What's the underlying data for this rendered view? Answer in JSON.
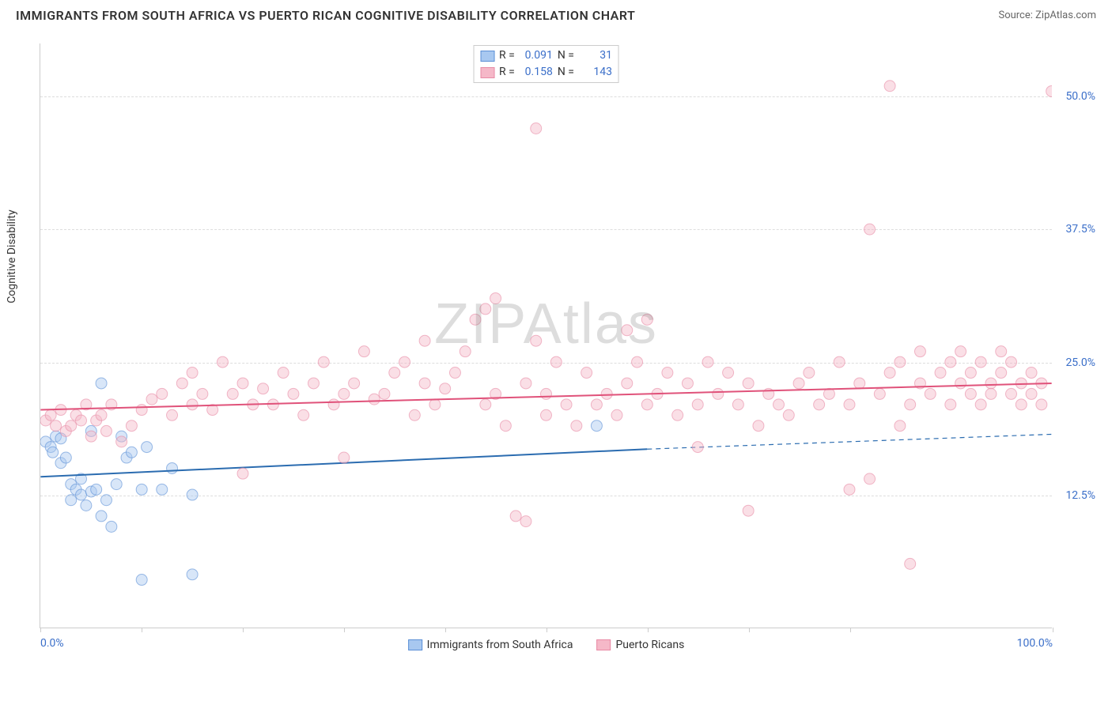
{
  "title": "IMMIGRANTS FROM SOUTH AFRICA VS PUERTO RICAN COGNITIVE DISABILITY CORRELATION CHART",
  "source_label": "Source: ",
  "source_name": "ZipAtlas.com",
  "watermark": "ZIPAtlas",
  "chart": {
    "type": "scatter",
    "y_axis_label": "Cognitive Disability",
    "xlim": [
      0,
      100
    ],
    "ylim": [
      0,
      55
    ],
    "y_ticks": [
      12.5,
      25.0,
      37.5,
      50.0
    ],
    "y_tick_labels": [
      "12.5%",
      "25.0%",
      "37.5%",
      "50.0%"
    ],
    "x_ticks": [
      0,
      10,
      20,
      30,
      40,
      50,
      60,
      70,
      80,
      100
    ],
    "x_tick_labels_shown": {
      "0": "0.0%",
      "100": "100.0%"
    },
    "background_color": "#ffffff",
    "grid_color": "#dddddd",
    "axis_color": "#cccccc",
    "point_radius": 7,
    "point_opacity": 0.45,
    "line_width": 2,
    "series": [
      {
        "id": "south_africa",
        "label": "Immigrants from South Africa",
        "color_fill": "#a8c8f0",
        "color_stroke": "#5b8fd6",
        "line_color": "#2b6cb0",
        "R": "0.091",
        "N": "31",
        "trend": {
          "x1": 0,
          "y1": 14.2,
          "x2": 60,
          "y2": 16.8,
          "dash_x2": 100,
          "dash_y2": 18.2
        },
        "points": [
          [
            0.5,
            17.5
          ],
          [
            1,
            17
          ],
          [
            1.2,
            16.5
          ],
          [
            1.5,
            18
          ],
          [
            2,
            17.8
          ],
          [
            2,
            15.5
          ],
          [
            2.5,
            16
          ],
          [
            3,
            13.5
          ],
          [
            3,
            12
          ],
          [
            3.5,
            13
          ],
          [
            4,
            12.5
          ],
          [
            4,
            14
          ],
          [
            4.5,
            11.5
          ],
          [
            5,
            12.8
          ],
          [
            5,
            18.5
          ],
          [
            5.5,
            13
          ],
          [
            6,
            10.5
          ],
          [
            6.5,
            12
          ],
          [
            7,
            9.5
          ],
          [
            7.5,
            13.5
          ],
          [
            8,
            18
          ],
          [
            8.5,
            16
          ],
          [
            9,
            16.5
          ],
          [
            10,
            13
          ],
          [
            10.5,
            17
          ],
          [
            12,
            13
          ],
          [
            13,
            15
          ],
          [
            15,
            12.5
          ],
          [
            6,
            23
          ],
          [
            10,
            4.5
          ],
          [
            15,
            5
          ],
          [
            55,
            19
          ]
        ]
      },
      {
        "id": "puerto_ricans",
        "label": "Puerto Ricans",
        "color_fill": "#f5b8c8",
        "color_stroke": "#e88aa5",
        "line_color": "#e0527a",
        "R": "0.158",
        "N": "143",
        "trend": {
          "x1": 0,
          "y1": 20.5,
          "x2": 100,
          "y2": 23.0
        },
        "points": [
          [
            0.5,
            19.5
          ],
          [
            1,
            20
          ],
          [
            1.5,
            19
          ],
          [
            2,
            20.5
          ],
          [
            2.5,
            18.5
          ],
          [
            3,
            19
          ],
          [
            3.5,
            20
          ],
          [
            4,
            19.5
          ],
          [
            4.5,
            21
          ],
          [
            5,
            18
          ],
          [
            5.5,
            19.5
          ],
          [
            6,
            20
          ],
          [
            6.5,
            18.5
          ],
          [
            7,
            21
          ],
          [
            8,
            17.5
          ],
          [
            9,
            19
          ],
          [
            10,
            20.5
          ],
          [
            11,
            21.5
          ],
          [
            12,
            22
          ],
          [
            13,
            20
          ],
          [
            14,
            23
          ],
          [
            15,
            21
          ],
          [
            15,
            24
          ],
          [
            16,
            22
          ],
          [
            17,
            20.5
          ],
          [
            18,
            25
          ],
          [
            19,
            22
          ],
          [
            20,
            23
          ],
          [
            20,
            14.5
          ],
          [
            21,
            21
          ],
          [
            22,
            22.5
          ],
          [
            23,
            21
          ],
          [
            24,
            24
          ],
          [
            25,
            22
          ],
          [
            26,
            20
          ],
          [
            27,
            23
          ],
          [
            28,
            25
          ],
          [
            29,
            21
          ],
          [
            30,
            22
          ],
          [
            30,
            16
          ],
          [
            31,
            23
          ],
          [
            32,
            26
          ],
          [
            33,
            21.5
          ],
          [
            34,
            22
          ],
          [
            35,
            24
          ],
          [
            36,
            25
          ],
          [
            37,
            20
          ],
          [
            38,
            23
          ],
          [
            38,
            27
          ],
          [
            39,
            21
          ],
          [
            40,
            22.5
          ],
          [
            41,
            24
          ],
          [
            42,
            26
          ],
          [
            43,
            29
          ],
          [
            44,
            21
          ],
          [
            44,
            30
          ],
          [
            45,
            22
          ],
          [
            45,
            31
          ],
          [
            46,
            19
          ],
          [
            47,
            10.5
          ],
          [
            48,
            23
          ],
          [
            48,
            10
          ],
          [
            49,
            27
          ],
          [
            49,
            47
          ],
          [
            50,
            22
          ],
          [
            50,
            20
          ],
          [
            51,
            25
          ],
          [
            52,
            21
          ],
          [
            53,
            19
          ],
          [
            54,
            24
          ],
          [
            55,
            21
          ],
          [
            56,
            22
          ],
          [
            57,
            20
          ],
          [
            58,
            23
          ],
          [
            58,
            28
          ],
          [
            59,
            25
          ],
          [
            60,
            21
          ],
          [
            60,
            29
          ],
          [
            61,
            22
          ],
          [
            62,
            24
          ],
          [
            63,
            20
          ],
          [
            64,
            23
          ],
          [
            65,
            21
          ],
          [
            65,
            17
          ],
          [
            66,
            25
          ],
          [
            67,
            22
          ],
          [
            68,
            24
          ],
          [
            69,
            21
          ],
          [
            70,
            23
          ],
          [
            70,
            11
          ],
          [
            71,
            19
          ],
          [
            72,
            22
          ],
          [
            73,
            21
          ],
          [
            74,
            20
          ],
          [
            75,
            23
          ],
          [
            76,
            24
          ],
          [
            77,
            21
          ],
          [
            78,
            22
          ],
          [
            79,
            25
          ],
          [
            80,
            21
          ],
          [
            80,
            13
          ],
          [
            81,
            23
          ],
          [
            82,
            14
          ],
          [
            82,
            37.5
          ],
          [
            83,
            22
          ],
          [
            84,
            24
          ],
          [
            85,
            19
          ],
          [
            85,
            25
          ],
          [
            86,
            21
          ],
          [
            86,
            6
          ],
          [
            87,
            23
          ],
          [
            87,
            26
          ],
          [
            88,
            22
          ],
          [
            89,
            24
          ],
          [
            90,
            25
          ],
          [
            90,
            21
          ],
          [
            91,
            23
          ],
          [
            91,
            26
          ],
          [
            92,
            22
          ],
          [
            92,
            24
          ],
          [
            93,
            25
          ],
          [
            93,
            21
          ],
          [
            94,
            23
          ],
          [
            94,
            22
          ],
          [
            95,
            24
          ],
          [
            95,
            26
          ],
          [
            96,
            22
          ],
          [
            96,
            25
          ],
          [
            97,
            21
          ],
          [
            97,
            23
          ],
          [
            98,
            24
          ],
          [
            98,
            22
          ],
          [
            99,
            23
          ],
          [
            99,
            21
          ],
          [
            100,
            50.5
          ],
          [
            84,
            51
          ]
        ]
      }
    ]
  },
  "legend_top": {
    "r_label": "R =",
    "n_label": "N ="
  },
  "colors": {
    "tick_label": "#3b6fc9",
    "text": "#333333"
  }
}
